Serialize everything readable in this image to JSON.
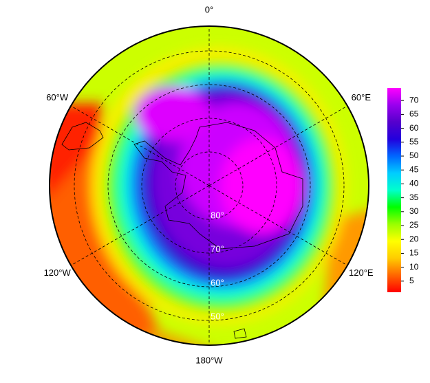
{
  "map": {
    "projection": "south-polar-stereographic",
    "longitude_labels": [
      {
        "value": 0,
        "label": "0°"
      },
      {
        "value": 60,
        "label": "60°E"
      },
      {
        "value": 120,
        "label": "120°E"
      },
      {
        "value": 180,
        "label": "180°W"
      },
      {
        "value": -120,
        "label": "120°W"
      },
      {
        "value": -60,
        "label": "60°W"
      }
    ],
    "latitude_labels": [
      {
        "value": -80,
        "label": "80°"
      },
      {
        "value": -70,
        "label": "70°"
      },
      {
        "value": -60,
        "label": "60°"
      },
      {
        "value": -50,
        "label": "50°"
      }
    ],
    "colorbar": {
      "lim": [
        1,
        74.5
      ],
      "ticks": [
        5,
        10,
        15,
        20,
        25,
        30,
        35,
        40,
        45,
        50,
        55,
        60,
        65,
        70
      ],
      "colormap": [
        "#ff0000",
        "#ff6600",
        "#ffcc00",
        "#ffff00",
        "#99ff00",
        "#00ff00",
        "#00ffcc",
        "#00ccff",
        "#0066ff",
        "#2200dd",
        "#5500cc",
        "#9900ee",
        "#ff00ff"
      ]
    }
  }
}
